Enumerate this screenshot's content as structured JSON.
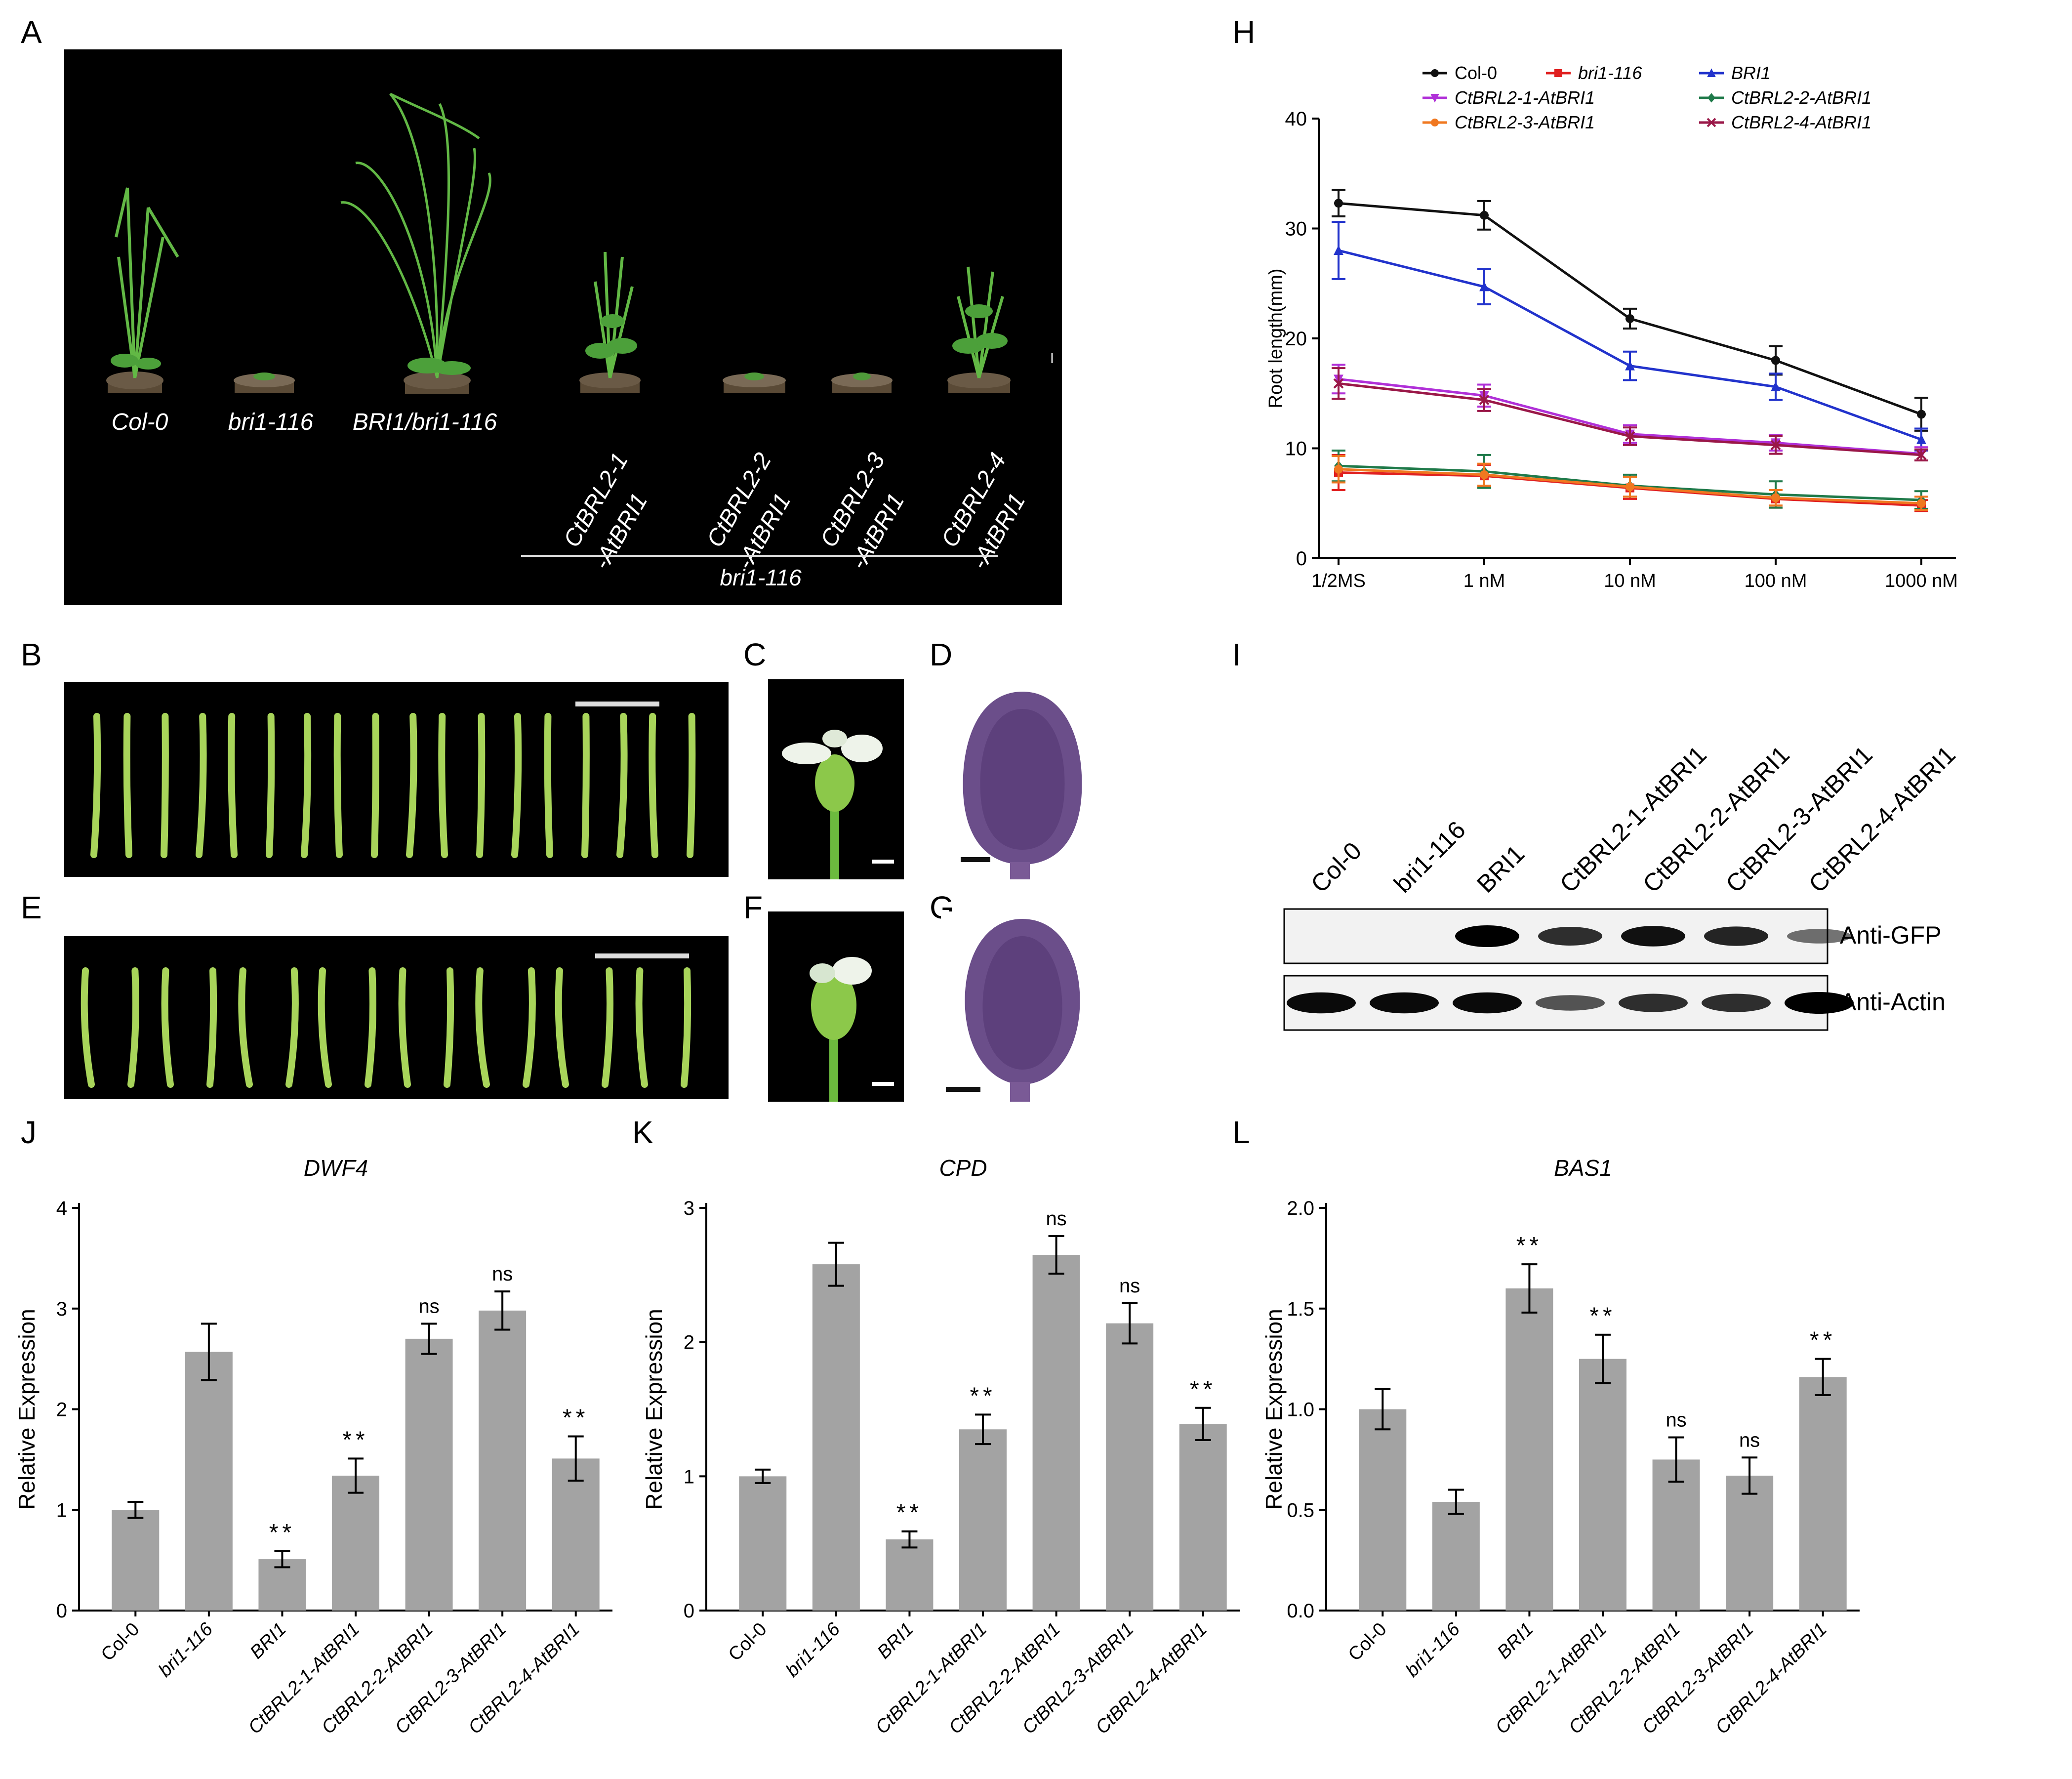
{
  "letters": {
    "A": "A",
    "B": "B",
    "C": "C",
    "D": "D",
    "E": "E",
    "F": "F",
    "G": "G",
    "H": "H",
    "I": "I",
    "J": "J",
    "K": "K",
    "L": "L"
  },
  "panelA": {
    "labels": [
      "Col-0",
      "bri1-116",
      "BRI1/bri1-116"
    ],
    "rot_labels": [
      {
        "l1": "CtBRL2-1",
        "l2": "-AtBRI1"
      },
      {
        "l1": "CtBRL2-2",
        "l2": "-AtBRI1"
      },
      {
        "l1": "CtBRL2-3",
        "l2": "-AtBRI1"
      },
      {
        "l1": "CtBRL2-4",
        "l2": "-AtBRI1"
      }
    ],
    "background": "bri1-116"
  },
  "colors": {
    "bar": "#a3a3a3",
    "col0": "#111111",
    "bri1116": "#e02020",
    "BRI1": "#2233cc",
    "c1": "#b030d8",
    "c2": "#1f7a4a",
    "c3": "#f07820",
    "c4": "#9a1848"
  },
  "panelH": {
    "chart_data": {
      "type": "line",
      "ylabel": "Root length(mm)",
      "x": [
        "1/2MS",
        "1 nM",
        "10 nM",
        "100 nM",
        "1000 nM"
      ],
      "ylim": [
        0,
        40
      ],
      "yticks": [
        "0",
        "10",
        "20",
        "30",
        "40"
      ],
      "series": [
        {
          "name": "Col-0",
          "values": [
            32.3,
            31.2,
            21.8,
            18.0,
            13.1
          ],
          "err": [
            1.2,
            1.3,
            0.9,
            1.3,
            1.5
          ]
        },
        {
          "name": "bri1-116",
          "values": [
            7.8,
            7.5,
            6.4,
            5.4,
            4.8
          ],
          "err": [
            1.6,
            1.0,
            1.0,
            0.8,
            0.5
          ]
        },
        {
          "name": "BRI1",
          "values": [
            28.0,
            24.7,
            17.5,
            15.6,
            10.8
          ],
          "err": [
            2.6,
            1.6,
            1.3,
            1.2,
            1.0
          ]
        },
        {
          "name": "CtBRL2-1-AtBRI1",
          "values": [
            16.3,
            14.8,
            11.3,
            10.5,
            9.5
          ],
          "err": [
            1.3,
            1.0,
            0.8,
            0.7,
            0.6
          ]
        },
        {
          "name": "CtBRL2-2-AtBRI1",
          "values": [
            8.4,
            7.9,
            6.6,
            5.8,
            5.3
          ],
          "err": [
            1.4,
            1.5,
            1.0,
            1.2,
            0.8
          ]
        },
        {
          "name": "CtBRL2-3-AtBRI1",
          "values": [
            8.1,
            7.6,
            6.5,
            5.5,
            5.0
          ],
          "err": [
            1.2,
            1.0,
            0.9,
            0.7,
            0.6
          ]
        },
        {
          "name": "CtBRL2-4-AtBRI1",
          "values": [
            15.9,
            14.4,
            11.1,
            10.3,
            9.4
          ],
          "err": [
            1.4,
            1.0,
            0.8,
            0.8,
            0.5
          ]
        }
      ]
    }
  },
  "panelI": {
    "lanes": [
      "Col-0",
      "bri1-116",
      "BRI1",
      "CtBRL2-1-AtBRI1",
      "CtBRL2-2-AtBRI1",
      "CtBRL2-3-AtBRI1",
      "CtBRL2-4-AtBRI1"
    ],
    "blots": [
      "Anti-GFP",
      "Anti-Actin"
    ],
    "gfp_intensity": [
      0,
      0,
      1.0,
      0.75,
      0.9,
      0.8,
      0.4
    ],
    "actin_intensity": [
      0.95,
      0.95,
      0.95,
      0.55,
      0.75,
      0.75,
      1.0
    ]
  },
  "chart_data": [
    {
      "type": "bar",
      "title": "DWF4",
      "ylabel": "Relative Expression",
      "categories": [
        "Col-0",
        "bri1-116",
        "BRI1",
        "CtBRL2-1-AtBRI1",
        "CtBRL2-2-AtBRI1",
        "CtBRL2-3-AtBRI1",
        "CtBRL2-4-AtBRI1"
      ],
      "values": [
        1.0,
        2.57,
        0.51,
        1.34,
        2.7,
        2.98,
        1.51
      ],
      "errors": [
        0.08,
        0.28,
        0.08,
        0.17,
        0.15,
        0.19,
        0.22
      ],
      "annotations": [
        "",
        "",
        "**",
        "**",
        "ns",
        "ns",
        "**"
      ],
      "ylim": [
        0,
        4
      ],
      "yticks": [
        "0",
        "1",
        "2",
        "3",
        "4"
      ]
    },
    {
      "type": "bar",
      "title": "CPD",
      "ylabel": "Relative Expression",
      "categories": [
        "Col-0",
        "bri1-116",
        "BRI1",
        "CtBRL2-1-AtBRI1",
        "CtBRL2-2-AtBRI1",
        "CtBRL2-3-AtBRI1",
        "CtBRL2-4-AtBRI1"
      ],
      "values": [
        1.0,
        2.58,
        0.53,
        1.35,
        2.65,
        2.14,
        1.39
      ],
      "errors": [
        0.05,
        0.16,
        0.06,
        0.11,
        0.14,
        0.15,
        0.12
      ],
      "annotations": [
        "",
        "",
        "**",
        "**",
        "ns",
        "ns",
        "**"
      ],
      "ylim": [
        0,
        3
      ],
      "yticks": [
        "0",
        "1",
        "2",
        "3"
      ]
    },
    {
      "type": "bar",
      "title": "BAS1",
      "ylabel": "Relative Expression",
      "categories": [
        "Col-0",
        "bri1-116",
        "BRI1",
        "CtBRL2-1-AtBRI1",
        "CtBRL2-2-AtBRI1",
        "CtBRL2-3-AtBRI1",
        "CtBRL2-4-AtBRI1"
      ],
      "values": [
        1.0,
        0.54,
        1.6,
        1.25,
        0.75,
        0.67,
        1.16
      ],
      "errors": [
        0.1,
        0.06,
        0.12,
        0.12,
        0.11,
        0.09,
        0.09
      ],
      "annotations": [
        "",
        "",
        "**",
        "**",
        "ns",
        "ns",
        "**"
      ],
      "ylim": [
        0,
        2
      ],
      "yticks": [
        "0.0",
        "0.5",
        "1.0",
        "1.5",
        "2.0"
      ]
    }
  ]
}
